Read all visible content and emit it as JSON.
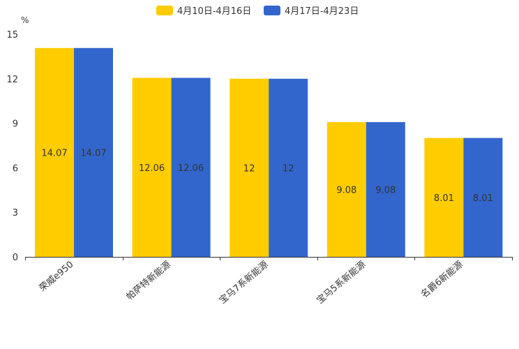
{
  "chart_data": {
    "type": "bar",
    "unit_label": "%",
    "categories": [
      "荣威e950",
      "帕萨特新能源",
      "宝马7系新能源",
      "宝马5系新能源",
      "名爵6新能源"
    ],
    "series": [
      {
        "name": "4月10日-4月16日",
        "color": "#ffcc00",
        "values": [
          14.07,
          12.06,
          12,
          9.08,
          8.01
        ]
      },
      {
        "name": "4月17日-4月23日",
        "color": "#3366cc",
        "values": [
          14.07,
          12.06,
          12,
          9.08,
          8.01
        ]
      }
    ],
    "value_labels": [
      [
        "14.07",
        "12.06",
        "12",
        "9.08",
        "8.01"
      ],
      [
        "14.07",
        "12.06",
        "12",
        "9.08",
        "8.01"
      ]
    ],
    "y_ticks": [
      0,
      3,
      6,
      9,
      12,
      15
    ],
    "ylim": [
      0,
      15
    ],
    "grid": false,
    "legend_position": "top-center"
  }
}
